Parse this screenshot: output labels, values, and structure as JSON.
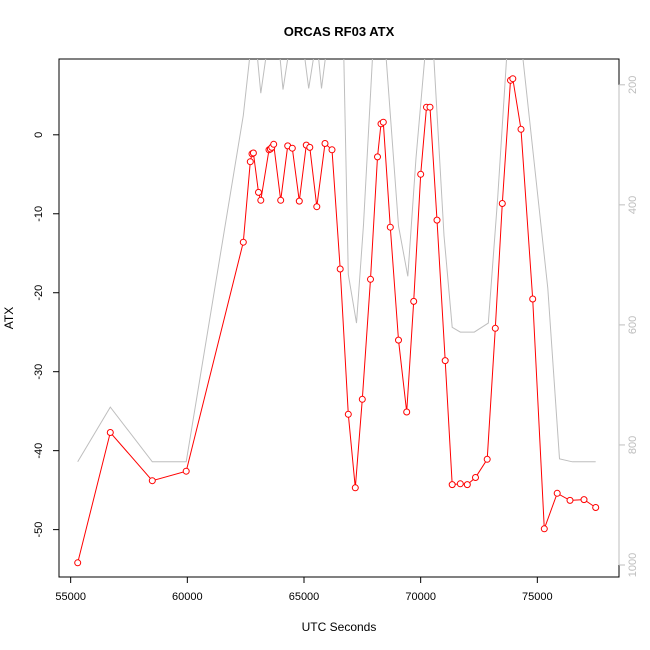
{
  "chart_data": {
    "type": "line",
    "title": "ORCAS RF03 ATX",
    "xlabel": "UTC Seconds",
    "ylabel": "ATX",
    "xlim": [
      54500,
      78500
    ],
    "ylim": [
      -56,
      9.6
    ],
    "y2lim": [
      1020,
      157
    ],
    "x_ticks": [
      55000,
      60000,
      65000,
      70000,
      75000
    ],
    "y_ticks": [
      -50,
      -40,
      -30,
      -20,
      -10,
      0
    ],
    "y2_ticks": [
      200,
      400,
      600,
      800,
      1000
    ],
    "grid": false,
    "colors": {
      "primary": "#ff0000",
      "secondary": "#bebebe"
    },
    "series": [
      {
        "axis": "left",
        "points": [
          [
            55300,
            -54.2
          ],
          [
            56700,
            -37.7
          ],
          [
            58500,
            -43.8
          ],
          [
            59950,
            -42.6
          ],
          [
            62400,
            -13.6
          ],
          [
            62700,
            -3.4
          ],
          [
            62770,
            -2.4
          ],
          [
            62830,
            -2.3
          ],
          [
            63050,
            -7.3
          ],
          [
            63150,
            -8.3
          ],
          [
            63500,
            -1.9
          ],
          [
            63560,
            -1.8
          ],
          [
            63620,
            -1.6
          ],
          [
            63700,
            -1.2
          ],
          [
            64000,
            -8.3
          ],
          [
            64300,
            -1.4
          ],
          [
            64500,
            -1.7
          ],
          [
            64800,
            -8.4
          ],
          [
            65100,
            -1.3
          ],
          [
            65250,
            -1.6
          ],
          [
            65550,
            -9.1
          ],
          [
            65900,
            -1.1
          ],
          [
            66200,
            -1.9
          ],
          [
            66550,
            -17.0
          ],
          [
            66900,
            -35.4
          ],
          [
            67200,
            -44.7
          ],
          [
            67500,
            -33.5
          ],
          [
            67850,
            -18.3
          ],
          [
            68150,
            -2.8
          ],
          [
            68300,
            1.4
          ],
          [
            68400,
            1.6
          ],
          [
            68700,
            -11.7
          ],
          [
            69050,
            -26.0
          ],
          [
            69400,
            -35.1
          ],
          [
            69700,
            -21.1
          ],
          [
            70000,
            -5.0
          ],
          [
            70250,
            3.5
          ],
          [
            70400,
            3.5
          ],
          [
            70700,
            -10.8
          ],
          [
            71050,
            -28.6
          ],
          [
            71350,
            -44.3
          ],
          [
            71700,
            -44.2
          ],
          [
            72000,
            -44.3
          ],
          [
            72350,
            -43.4
          ],
          [
            72850,
            -41.1
          ],
          [
            73200,
            -24.5
          ],
          [
            73500,
            -8.7
          ],
          [
            73850,
            6.9
          ],
          [
            73950,
            7.1
          ],
          [
            74300,
            0.7
          ],
          [
            74800,
            -20.8
          ],
          [
            75300,
            -49.9
          ],
          [
            75850,
            -45.4
          ],
          [
            76400,
            -46.3
          ],
          [
            77000,
            -46.2
          ],
          [
            77500,
            -47.2
          ]
        ]
      },
      {
        "axis": "right",
        "points": [
          [
            55300,
            828
          ],
          [
            56700,
            737
          ],
          [
            58500,
            828
          ],
          [
            59950,
            828
          ],
          [
            62400,
            251
          ],
          [
            62700,
            145
          ],
          [
            62980,
            145
          ],
          [
            63150,
            214
          ],
          [
            63400,
            145
          ],
          [
            63950,
            145
          ],
          [
            64100,
            208
          ],
          [
            64350,
            145
          ],
          [
            65000,
            145
          ],
          [
            65200,
            206
          ],
          [
            65450,
            145
          ],
          [
            65600,
            145
          ],
          [
            65750,
            206
          ],
          [
            65950,
            145
          ],
          [
            66700,
            145
          ],
          [
            66900,
            516
          ],
          [
            67250,
            597
          ],
          [
            67550,
            433
          ],
          [
            67950,
            145
          ],
          [
            68500,
            145
          ],
          [
            69050,
            435
          ],
          [
            69450,
            519
          ],
          [
            69800,
            322
          ],
          [
            70200,
            145
          ],
          [
            70550,
            145
          ],
          [
            71000,
            451
          ],
          [
            71350,
            604
          ],
          [
            71700,
            612
          ],
          [
            72300,
            612
          ],
          [
            72900,
            597
          ],
          [
            73300,
            388
          ],
          [
            73700,
            145
          ],
          [
            74350,
            145
          ],
          [
            75450,
            539
          ],
          [
            75950,
            823
          ],
          [
            76500,
            828
          ],
          [
            77500,
            828
          ]
        ]
      }
    ]
  }
}
